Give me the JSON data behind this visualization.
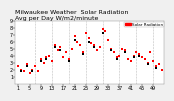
{
  "title": "Milwaukee Weather  Solar Radiation",
  "subtitle": "Avg per Day W/m2/minute",
  "background_color": "#f0f0f0",
  "plot_bg_color": "#ffffff",
  "grid_color": "#bbbbbb",
  "legend_color": "#ff0000",
  "legend_label": "Solar Radiation",
  "ylim": [
    0,
    9
  ],
  "ytick_vals": [
    1,
    2,
    3,
    4,
    5,
    6,
    7,
    8,
    9
  ],
  "ytick_labels": [
    "1",
    "2",
    "3",
    "4",
    "5",
    "6",
    "7",
    "8",
    "9"
  ],
  "xlim": [
    0,
    53
  ],
  "vline_positions": [
    7,
    13,
    19,
    25,
    31,
    37,
    43,
    49
  ],
  "red_data_x": [
    1,
    2,
    3,
    4,
    5,
    6,
    7,
    8,
    9,
    10,
    11,
    12,
    13,
    14,
    15,
    16,
    17,
    18,
    19,
    20,
    21,
    22,
    23,
    24,
    25,
    26,
    27,
    28,
    29,
    30,
    31,
    32,
    33,
    34,
    35,
    36,
    37,
    38,
    39,
    40,
    41,
    42,
    43,
    44,
    45,
    46,
    47,
    48,
    49,
    50,
    51,
    52
  ],
  "red_data_y": [
    2.5,
    2.0,
    1.8,
    2.8,
    1.5,
    2.0,
    2.5,
    1.8,
    3.5,
    3.0,
    3.8,
    4.0,
    3.2,
    5.5,
    4.8,
    5.2,
    3.8,
    4.5,
    3.5,
    5.0,
    6.8,
    6.0,
    5.5,
    4.5,
    7.2,
    6.5,
    5.8,
    5.5,
    4.8,
    5.2,
    7.8,
    7.5,
    6.2,
    5.0,
    4.5,
    3.8,
    4.0,
    5.0,
    4.8,
    3.5,
    3.2,
    4.0,
    4.5,
    4.2,
    3.8,
    3.5,
    3.0,
    4.5,
    3.2,
    2.5,
    2.8,
    2.0
  ],
  "black_data_x": [
    2,
    4,
    6,
    9,
    11,
    14,
    16,
    19,
    21,
    24,
    26,
    28,
    31,
    34,
    36,
    39,
    42,
    44,
    47,
    50
  ],
  "black_data_y": [
    1.8,
    2.5,
    1.8,
    3.2,
    3.5,
    5.2,
    4.8,
    3.2,
    6.2,
    4.2,
    6.0,
    5.2,
    7.2,
    4.8,
    3.5,
    4.5,
    3.8,
    4.0,
    2.8,
    2.2
  ],
  "dot_size_red": 2,
  "dot_size_black": 2,
  "xlabel_fontsize": 3.5,
  "ylabel_fontsize": 3.5,
  "title_fontsize": 4.5
}
